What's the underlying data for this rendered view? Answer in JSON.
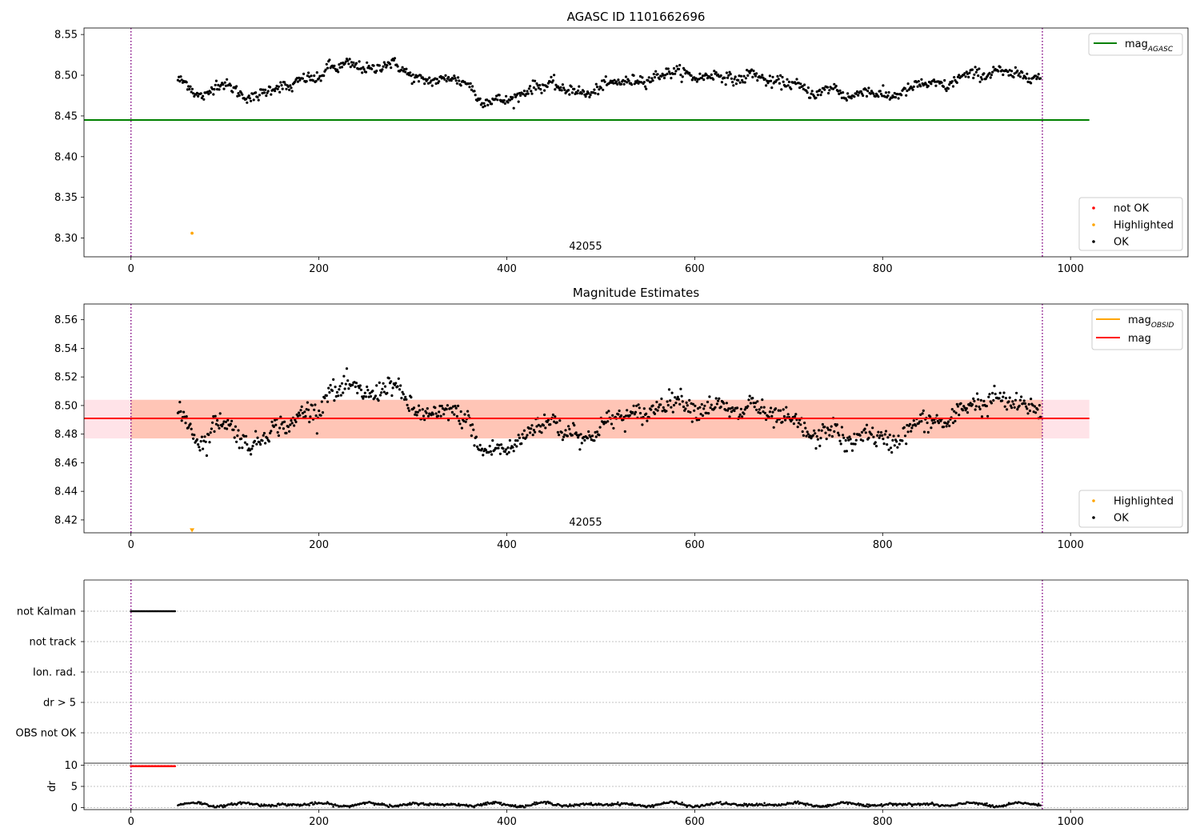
{
  "chart_data": [
    {
      "type": "scatter",
      "title": "AGASC ID 1101662696",
      "annotation": "42055",
      "xlim": [
        -50,
        1125
      ],
      "ylim": [
        8.277,
        8.558
      ],
      "x_ticks": [
        0,
        200,
        400,
        600,
        800,
        1000
      ],
      "y_ticks": [
        8.3,
        8.35,
        8.4,
        8.45,
        8.5,
        8.55
      ],
      "y_tick_labels": [
        "8.30",
        "8.35",
        "8.40",
        "8.45",
        "8.50",
        "8.55"
      ],
      "vlines": [
        0,
        970
      ],
      "ok_series": {
        "name": "OK",
        "color": "#000000",
        "knots": [
          [
            50,
            8.495
          ],
          [
            60,
            8.49
          ],
          [
            70,
            8.475
          ],
          [
            80,
            8.474
          ],
          [
            90,
            8.489
          ],
          [
            100,
            8.489
          ],
          [
            110,
            8.483
          ],
          [
            120,
            8.474
          ],
          [
            130,
            8.472
          ],
          [
            140,
            8.478
          ],
          [
            150,
            8.484
          ],
          [
            160,
            8.487
          ],
          [
            170,
            8.484
          ],
          [
            180,
            8.495
          ],
          [
            190,
            8.497
          ],
          [
            200,
            8.494
          ],
          [
            210,
            8.512
          ],
          [
            220,
            8.508
          ],
          [
            230,
            8.515
          ],
          [
            240,
            8.511
          ],
          [
            250,
            8.508
          ],
          [
            260,
            8.507
          ],
          [
            270,
            8.514
          ],
          [
            280,
            8.515
          ],
          [
            290,
            8.506
          ],
          [
            300,
            8.497
          ],
          [
            310,
            8.494
          ],
          [
            320,
            8.493
          ],
          [
            330,
            8.494
          ],
          [
            340,
            8.498
          ],
          [
            350,
            8.492
          ],
          [
            360,
            8.49
          ],
          [
            370,
            8.469
          ],
          [
            380,
            8.468
          ],
          [
            390,
            8.471
          ],
          [
            400,
            8.468
          ],
          [
            410,
            8.473
          ],
          [
            420,
            8.48
          ],
          [
            430,
            8.487
          ],
          [
            440,
            8.486
          ],
          [
            450,
            8.491
          ],
          [
            460,
            8.48
          ],
          [
            470,
            8.484
          ],
          [
            480,
            8.478
          ],
          [
            490,
            8.476
          ],
          [
            500,
            8.487
          ],
          [
            510,
            8.49
          ],
          [
            520,
            8.492
          ],
          [
            530,
            8.492
          ],
          [
            540,
            8.495
          ],
          [
            550,
            8.493
          ],
          [
            560,
            8.5
          ],
          [
            570,
            8.502
          ],
          [
            580,
            8.505
          ],
          [
            590,
            8.503
          ],
          [
            600,
            8.496
          ],
          [
            610,
            8.498
          ],
          [
            620,
            8.501
          ],
          [
            630,
            8.499
          ],
          [
            640,
            8.495
          ],
          [
            650,
            8.494
          ],
          [
            660,
            8.504
          ],
          [
            670,
            8.497
          ],
          [
            680,
            8.491
          ],
          [
            690,
            8.492
          ],
          [
            700,
            8.49
          ],
          [
            710,
            8.488
          ],
          [
            720,
            8.48
          ],
          [
            730,
            8.476
          ],
          [
            740,
            8.483
          ],
          [
            750,
            8.485
          ],
          [
            760,
            8.473
          ],
          [
            770,
            8.474
          ],
          [
            780,
            8.483
          ],
          [
            790,
            8.478
          ],
          [
            800,
            8.476
          ],
          [
            810,
            8.474
          ],
          [
            820,
            8.478
          ],
          [
            830,
            8.484
          ],
          [
            840,
            8.49
          ],
          [
            850,
            8.488
          ],
          [
            860,
            8.49
          ],
          [
            870,
            8.485
          ],
          [
            880,
            8.497
          ],
          [
            890,
            8.5
          ],
          [
            900,
            8.503
          ],
          [
            910,
            8.498
          ],
          [
            920,
            8.508
          ],
          [
            930,
            8.502
          ],
          [
            940,
            8.501
          ],
          [
            950,
            8.5
          ],
          [
            960,
            8.499
          ],
          [
            968,
            8.496
          ]
        ],
        "scatter_sd": 0.0035
      },
      "highlighted_points": [
        [
          65,
          8.306
        ]
      ],
      "hlines": [
        {
          "name": "mag",
          "sub": "AGASC",
          "value": 8.445,
          "color": "#008000",
          "x": [
            -50,
            1020
          ]
        }
      ],
      "legend_lines": [
        {
          "name": "mag",
          "sub": "AGASC",
          "color": "#008000"
        }
      ],
      "legend_points": [
        {
          "name": "not OK",
          "color": "#ff0000"
        },
        {
          "name": "Highlighted",
          "color": "#ffa500"
        },
        {
          "name": "OK",
          "color": "#000000"
        }
      ]
    },
    {
      "type": "scatter",
      "title": "Magnitude Estimates",
      "annotation": "42055",
      "xlim": [
        -50,
        1125
      ],
      "ylim": [
        8.411,
        8.571
      ],
      "x_ticks": [
        0,
        200,
        400,
        600,
        800,
        1000
      ],
      "y_ticks": [
        8.42,
        8.44,
        8.46,
        8.48,
        8.5,
        8.52,
        8.54,
        8.56
      ],
      "y_tick_labels": [
        "8.42",
        "8.44",
        "8.46",
        "8.48",
        "8.50",
        "8.52",
        "8.54",
        "8.56"
      ],
      "vlines": [
        0,
        970
      ],
      "highlighted_points": [
        [
          65,
          8.413
        ]
      ],
      "bands": [
        {
          "y0": 8.477,
          "y1": 8.504,
          "x0": -50,
          "x1": 1020,
          "color": "#ffc0cb",
          "opacity": 0.45
        },
        {
          "y0": 8.477,
          "y1": 8.504,
          "x0": 0,
          "x1": 970,
          "color": "#ffa07a",
          "opacity": 0.45
        }
      ],
      "hlines": [
        {
          "name": "mag",
          "value": 8.491,
          "color": "#ff0000",
          "x": [
            -50,
            1020
          ]
        }
      ],
      "obsid_line": {
        "name": "mag",
        "sub": "OBSID",
        "value": 8.491,
        "color": "#ffa500",
        "x": [
          0,
          970
        ]
      },
      "legend_lines": [
        {
          "name": "mag",
          "sub": "OBSID",
          "color": "#ffa500"
        },
        {
          "name": "mag",
          "color": "#ff0000"
        }
      ],
      "legend_points": [
        {
          "name": "Highlighted",
          "color": "#ffa500"
        },
        {
          "name": "OK",
          "color": "#000000"
        }
      ]
    },
    {
      "type": "scatter",
      "xlim": [
        -50,
        1125
      ],
      "vlines": [
        0,
        970
      ],
      "flag_rows": [
        "not Kalman",
        "not track",
        "Ion. rad.",
        "dr > 5",
        "OBS not OK"
      ],
      "flags": [
        {
          "row": "not Kalman",
          "x_range": [
            0,
            48
          ],
          "color": "#000000"
        }
      ]
    },
    {
      "type": "scatter",
      "xlim": [
        -50,
        1125
      ],
      "ylim": [
        -0.5,
        10.5
      ],
      "ylabel": "dr",
      "x_ticks": [
        0,
        200,
        400,
        600,
        800,
        1000
      ],
      "y_ticks": [
        0,
        5,
        10
      ],
      "y_tick_labels": [
        "0",
        "5",
        "10"
      ],
      "vlines": [
        0,
        970
      ],
      "capped": {
        "x_range": [
          0,
          48
        ],
        "value": 9.8,
        "color": "#ff0000"
      },
      "dr_series": {
        "x_range": [
          50,
          968
        ],
        "base": 0.7,
        "amplitude": 0.5,
        "color": "#000000"
      }
    }
  ]
}
